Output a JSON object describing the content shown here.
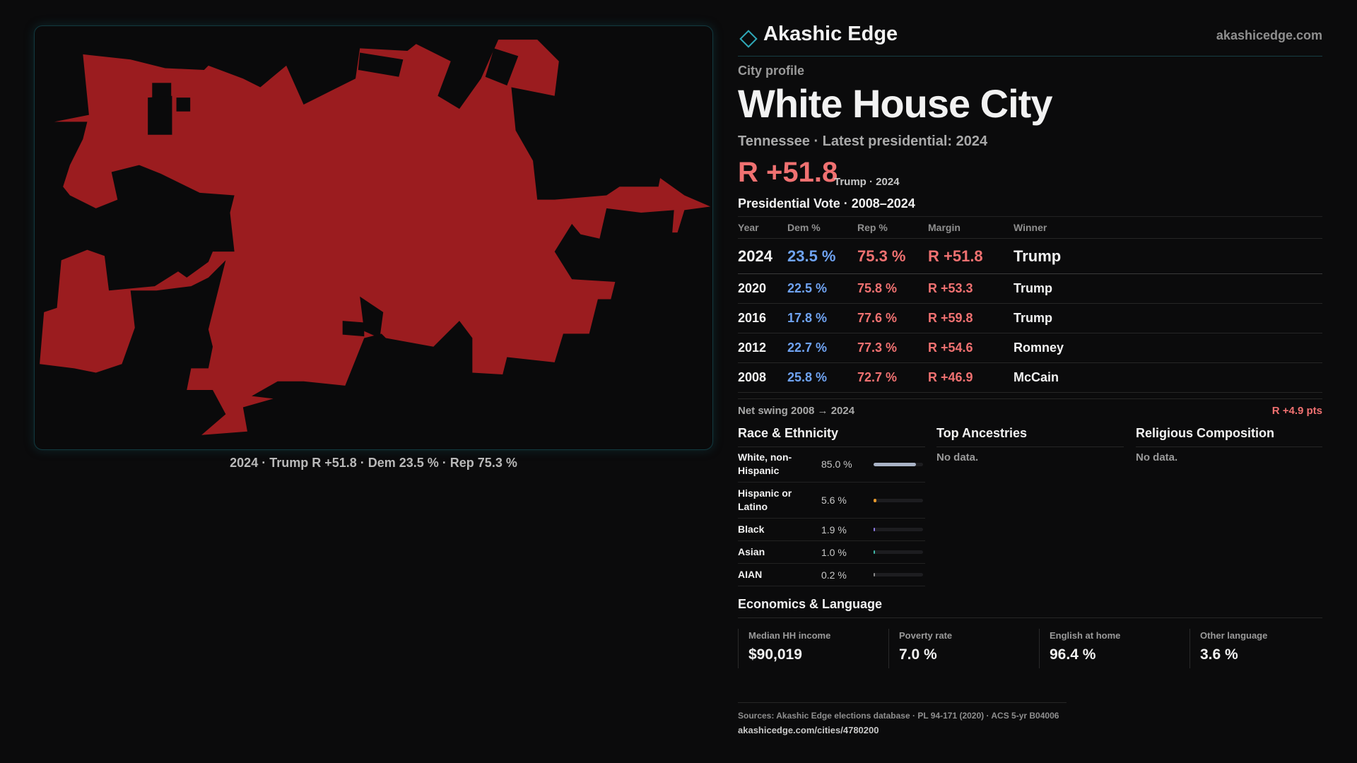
{
  "header": {
    "brand": "Akashic Edge",
    "site": "akashicedge.com"
  },
  "map": {
    "caption": "2024 · Trump R +51.8 · Dem 23.5 % · Rep 75.3 %"
  },
  "profile": {
    "kicker": "City profile",
    "title": "White House City",
    "subtitle": "Tennessee · Latest presidential: 2024",
    "margin": "R +51.8",
    "margin_note": "Trump · 2024"
  },
  "vote_table": {
    "title": "Presidential Vote · 2008–2024",
    "columns": [
      "Year",
      "Dem %",
      "Rep %",
      "Margin",
      "Winner"
    ],
    "rows": [
      [
        "2024",
        "23.5 %",
        "75.3 %",
        "R +51.8",
        "Trump"
      ],
      [
        "2020",
        "22.5 %",
        "75.8 %",
        "R +53.3",
        "Trump"
      ],
      [
        "2016",
        "17.8 %",
        "77.6 %",
        "R +59.8",
        "Trump"
      ],
      [
        "2012",
        "22.7 %",
        "77.3 %",
        "R +54.6",
        "Romney"
      ],
      [
        "2008",
        "25.8 %",
        "72.7 %",
        "R +46.9",
        "McCain"
      ]
    ]
  },
  "net_swing": {
    "label": "Net swing 2008 → 2024",
    "value": "R +4.9 pts"
  },
  "race": {
    "title": "Race & Ethnicity",
    "rows": [
      {
        "label": "White, non-Hispanic",
        "value": 85.0,
        "value_label": "85.0 %",
        "color": "#a9b3c6"
      },
      {
        "label": "Hispanic or Latino",
        "value": 5.6,
        "value_label": "5.6 %",
        "color": "#e79a2c"
      },
      {
        "label": "Black",
        "value": 1.9,
        "value_label": "1.9 %",
        "color": "#8e7ae6"
      },
      {
        "label": "Asian",
        "value": 1.0,
        "value_label": "1.0 %",
        "color": "#3fb8a8"
      },
      {
        "label": "AIAN",
        "value": 0.2,
        "value_label": "0.2 %",
        "color": "#8a8a8a"
      }
    ]
  },
  "ancestries": {
    "title": "Top Ancestries",
    "note": "No data."
  },
  "religion": {
    "title": "Religious Composition",
    "note": "No data."
  },
  "economics": {
    "title": "Economics & Language",
    "stats": [
      {
        "label": "Median HH income",
        "value": "$90,019"
      },
      {
        "label": "Poverty rate",
        "value": "7.0 %"
      },
      {
        "label": "English at home",
        "value": "96.4 %"
      },
      {
        "label": "Other language",
        "value": "3.6 %"
      }
    ]
  },
  "footer": {
    "sources": "Sources: Akashic Edge elections database · PL 94-171 (2020) · ACS 5-yr B04006",
    "url": "akashicedge.com/cities/4780200"
  }
}
